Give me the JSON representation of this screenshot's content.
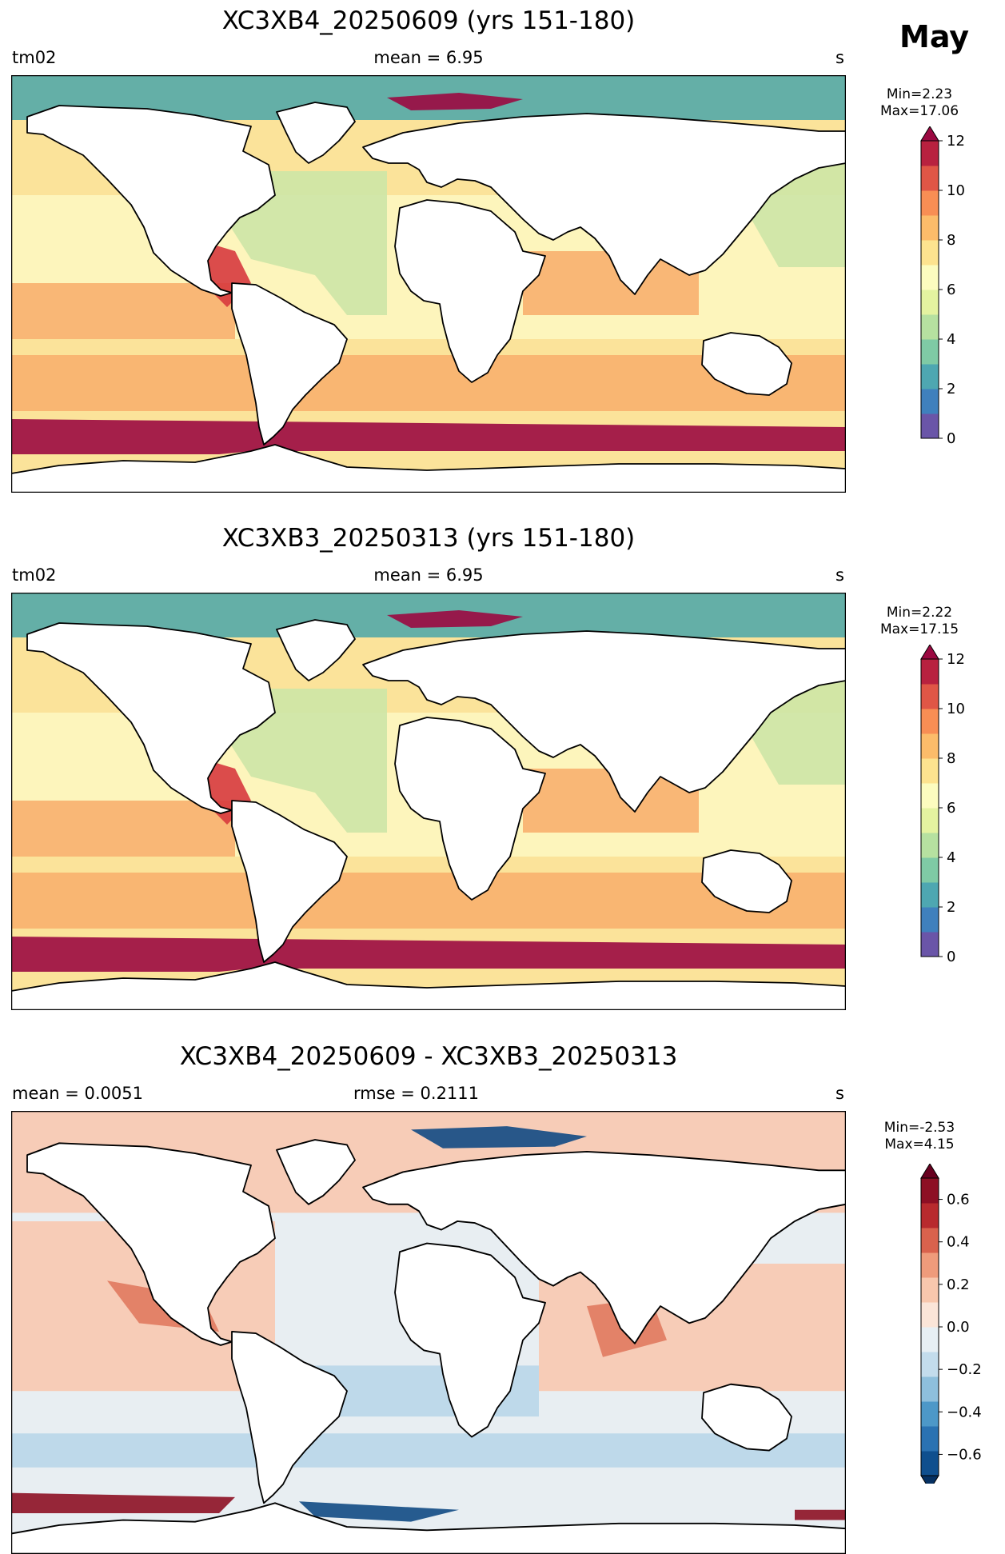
{
  "month": "May",
  "panels": [
    {
      "title": "XC3XB4_20250609 (yrs 151-180)",
      "left_label": "tm02",
      "center_label": "mean = 6.95",
      "right_label": "s",
      "min_label": "Min=2.23",
      "max_label": "Max=17.06"
    },
    {
      "title": "XC3XB3_20250313 (yrs 151-180)",
      "left_label": "tm02",
      "center_label": "mean = 6.95",
      "right_label": "s",
      "min_label": "Min=2.22",
      "max_label": "Max=17.15"
    },
    {
      "title": "XC3XB4_20250609 - XC3XB3_20250313",
      "left_label": "mean = 0.0051",
      "center_label": "rmse = 0.2111",
      "right_label": "s",
      "min_label": "Min=-2.53",
      "max_label": "Max=4.15"
    }
  ],
  "colorbars": {
    "sequential": {
      "ticks": [
        "0",
        "2",
        "4",
        "6",
        "8",
        "10",
        "12"
      ],
      "colors": [
        "#6a55a8",
        "#3f80bd",
        "#4ea7b1",
        "#7fcaa5",
        "#b6e1a0",
        "#e4f3a0",
        "#fcfcbf",
        "#fde38f",
        "#fcbc6a",
        "#f88e54",
        "#e05646",
        "#b8213f"
      ],
      "extend_color": "#9b0941"
    },
    "diverging": {
      "ticks": [
        "0.6",
        "0.4",
        "0.2",
        "0.0",
        "−0.2",
        "−0.4",
        "−0.6"
      ],
      "colors": [
        "#0f4f8e",
        "#2a72b2",
        "#4d98c8",
        "#8ebfdc",
        "#c3dcec",
        "#e7eff4",
        "#fbe5d8",
        "#f8c7ad",
        "#ef9b7b",
        "#d9624d",
        "#b82a2e",
        "#8d0f24"
      ],
      "extend_low": "#053061",
      "extend_high": "#67001f"
    }
  },
  "map_colors": {
    "land": "#ffffff",
    "coastline": "#000000",
    "seq_arctic": "#53a9a8",
    "seq_ocean_main": "#fbe39a",
    "seq_ocean_pale": "#fdf6c0",
    "seq_ocean_green": "#cde6a6",
    "seq_orange": "#f8b06e",
    "seq_red": "#d73a3e",
    "seq_darkred": "#9b0941",
    "div_ocean": "#e8eef2",
    "div_pos": "#f8c8b0",
    "div_pos_strong": "#e07a5f",
    "div_neg": "#b9d6e9",
    "div_neg_strong": "#114a84",
    "div_darkred": "#8d0f24"
  }
}
